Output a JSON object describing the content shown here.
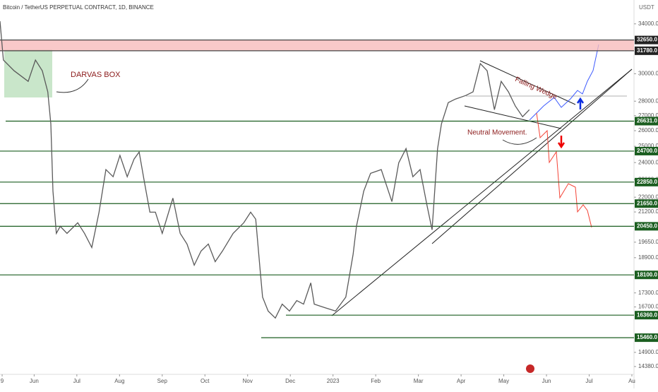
{
  "chart_data": {
    "type": "line",
    "log_scale": true,
    "color": "#5a5a5a",
    "title": "Bitcoin / TetherUS PERPETUAL CONTRACT, 1D, BINANCE",
    "y_axis_label": "USDT",
    "annotations": [
      "DARVAS BOX",
      "Falling Wedge",
      "Neutral Movement."
    ],
    "ylim": [
      14100,
      36100
    ],
    "xlim": [
      5.2,
      20.05
    ],
    "xticks": [
      {
        "value": 5.25,
        "label": "9"
      },
      {
        "value": 6,
        "label": "Jun"
      },
      {
        "value": 7,
        "label": "Jul"
      },
      {
        "value": 8,
        "label": "Aug"
      },
      {
        "value": 9,
        "label": "Sep"
      },
      {
        "value": 10,
        "label": "Oct"
      },
      {
        "value": 11,
        "label": "Nov"
      },
      {
        "value": 12,
        "label": "Dec"
      },
      {
        "value": 13,
        "label": "2023"
      },
      {
        "value": 14,
        "label": "Feb"
      },
      {
        "value": 15,
        "label": "Mar"
      },
      {
        "value": 16,
        "label": "Apr"
      },
      {
        "value": 17,
        "label": "May"
      },
      {
        "value": 18,
        "label": "Jun"
      },
      {
        "value": 19,
        "label": "Jul"
      },
      {
        "value": 20,
        "label": "Au"
      }
    ],
    "yticks": [
      {
        "value": 34000,
        "label": "34000.0"
      },
      {
        "value": 30000,
        "label": "30000.0"
      },
      {
        "value": 28000,
        "label": "28000.0"
      },
      {
        "value": 27000,
        "label": "27000.0"
      },
      {
        "value": 26000,
        "label": "26000.0"
      },
      {
        "value": 25000,
        "label": "25000.0"
      },
      {
        "value": 24000,
        "label": "24000.0"
      },
      {
        "value": 23000,
        "label": "23000.0"
      },
      {
        "value": 22000,
        "label": "22000.0"
      },
      {
        "value": 21200,
        "label": "21200.0"
      },
      {
        "value": 19650,
        "label": "19650.0"
      },
      {
        "value": 18900,
        "label": "18900.0"
      },
      {
        "value": 17300,
        "label": "17300.0"
      },
      {
        "value": 16700,
        "label": "16700.0"
      },
      {
        "value": 14900,
        "label": "14900.0"
      },
      {
        "value": 14380,
        "label": "14380.0"
      }
    ],
    "levels": [
      {
        "value": 32650,
        "label": "32650.0"
      },
      {
        "value": 31780,
        "label": "31780.0"
      },
      {
        "value": 26631,
        "label": "26631.0"
      },
      {
        "value": 24700,
        "label": "24700.0"
      },
      {
        "value": 22850,
        "label": "22850.0"
      },
      {
        "value": 21650,
        "label": "21650.0"
      },
      {
        "value": 20450,
        "label": "20450.0"
      },
      {
        "value": 18100,
        "label": "18100.0"
      },
      {
        "value": 16360,
        "label": "16360.0"
      },
      {
        "value": 15460,
        "label": "15460.0"
      }
    ],
    "x": [
      5.2,
      5.28,
      5.53,
      5.86,
      6.03,
      6.19,
      6.32,
      6.39,
      6.44,
      6.52,
      6.61,
      6.77,
      7.02,
      7.18,
      7.35,
      7.52,
      7.68,
      7.85,
      8.01,
      8.18,
      8.34,
      8.46,
      8.59,
      8.71,
      8.84,
      9.0,
      9.25,
      9.42,
      9.58,
      9.75,
      9.91,
      10.08,
      10.24,
      10.41,
      10.66,
      10.91,
      11.07,
      11.19,
      11.29,
      11.35,
      11.48,
      11.65,
      11.81,
      11.98,
      12.15,
      12.31,
      12.48,
      12.56,
      12.81,
      13.06,
      13.3,
      13.47,
      13.55,
      13.72,
      13.88,
      14.13,
      14.38,
      14.54,
      14.71,
      14.87,
      15.04,
      15.2,
      15.32,
      15.45,
      15.54,
      15.7,
      15.87,
      16.11,
      16.28,
      16.45,
      16.61,
      16.78,
      16.94,
      17.11,
      17.27,
      17.44,
      17.6
    ],
    "values": [
      34230,
      31050,
      30220,
      29430,
      31050,
      30220,
      28660,
      26450,
      22340,
      20090,
      20450,
      20090,
      20630,
      20090,
      19390,
      21190,
      23580,
      23160,
      24430,
      23160,
      24210,
      24640,
      22750,
      21190,
      21190,
      20090,
      21950,
      20090,
      19560,
      18550,
      19220,
      19560,
      18710,
      19220,
      20090,
      20630,
      21190,
      20820,
      18380,
      17120,
      16530,
      16240,
      16820,
      16530,
      16970,
      16820,
      17740,
      16820,
      16670,
      16530,
      17120,
      19050,
      20450,
      22340,
      23360,
      23580,
      21760,
      23990,
      24860,
      23160,
      23580,
      21570,
      20270,
      24860,
      26450,
      27900,
      28150,
      28400,
      28660,
      30770,
      30220,
      27410,
      29430,
      28660,
      27660,
      26930,
      27410
    ]
  }
}
